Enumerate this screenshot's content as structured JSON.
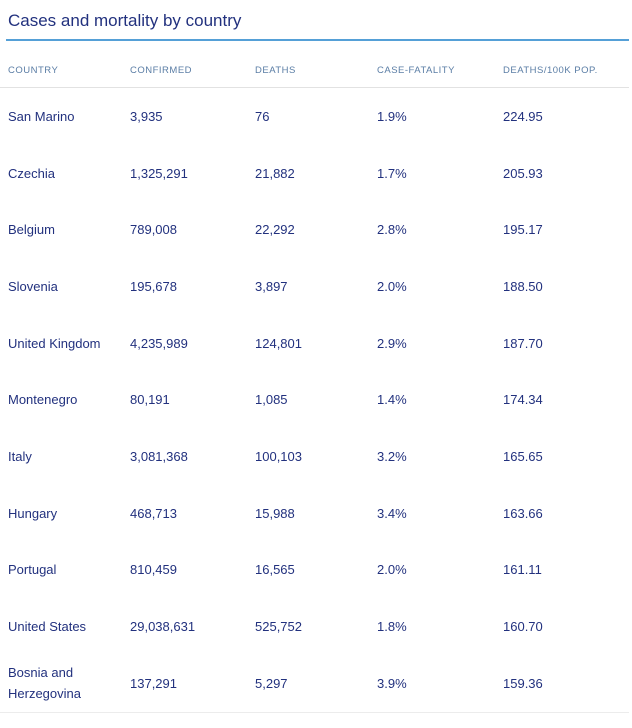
{
  "page_title": "Cases and mortality by country",
  "colors": {
    "title_text": "#22317e",
    "cell_text": "#22317e",
    "column_header_text": "#5a7da5",
    "title_rule_blue": "#55a0d7",
    "header_divider_gray": "#e2e2e2",
    "bottom_divider_gray": "#ececec",
    "background": "#ffffff"
  },
  "chart_data": {
    "type": "table",
    "title": "Cases and mortality by country",
    "columns": [
      "COUNTRY",
      "CONFIRMED",
      "DEATHS",
      "CASE-FATALITY",
      "DEATHS/100K POP."
    ],
    "rows": [
      {
        "country": "San Marino",
        "confirmed": "3,935",
        "deaths": "76",
        "case_fatality": "1.9%",
        "deaths_per_100k": "224.95"
      },
      {
        "country": "Czechia",
        "confirmed": "1,325,291",
        "deaths": "21,882",
        "case_fatality": "1.7%",
        "deaths_per_100k": "205.93"
      },
      {
        "country": "Belgium",
        "confirmed": "789,008",
        "deaths": "22,292",
        "case_fatality": "2.8%",
        "deaths_per_100k": "195.17"
      },
      {
        "country": "Slovenia",
        "confirmed": "195,678",
        "deaths": "3,897",
        "case_fatality": "2.0%",
        "deaths_per_100k": "188.50"
      },
      {
        "country": "United Kingdom",
        "confirmed": "4,235,989",
        "deaths": "124,801",
        "case_fatality": "2.9%",
        "deaths_per_100k": "187.70"
      },
      {
        "country": "Montenegro",
        "confirmed": "80,191",
        "deaths": "1,085",
        "case_fatality": "1.4%",
        "deaths_per_100k": "174.34"
      },
      {
        "country": "Italy",
        "confirmed": "3,081,368",
        "deaths": "100,103",
        "case_fatality": "3.2%",
        "deaths_per_100k": "165.65"
      },
      {
        "country": "Hungary",
        "confirmed": "468,713",
        "deaths": "15,988",
        "case_fatality": "3.4%",
        "deaths_per_100k": "163.66"
      },
      {
        "country": "Portugal",
        "confirmed": "810,459",
        "deaths": "16,565",
        "case_fatality": "2.0%",
        "deaths_per_100k": "161.11"
      },
      {
        "country": "United States",
        "confirmed": "29,038,631",
        "deaths": "525,752",
        "case_fatality": "1.8%",
        "deaths_per_100k": "160.70"
      },
      {
        "country": "Bosnia and Herzegovina",
        "confirmed": "137,291",
        "deaths": "5,297",
        "case_fatality": "3.9%",
        "deaths_per_100k": "159.36"
      }
    ]
  }
}
